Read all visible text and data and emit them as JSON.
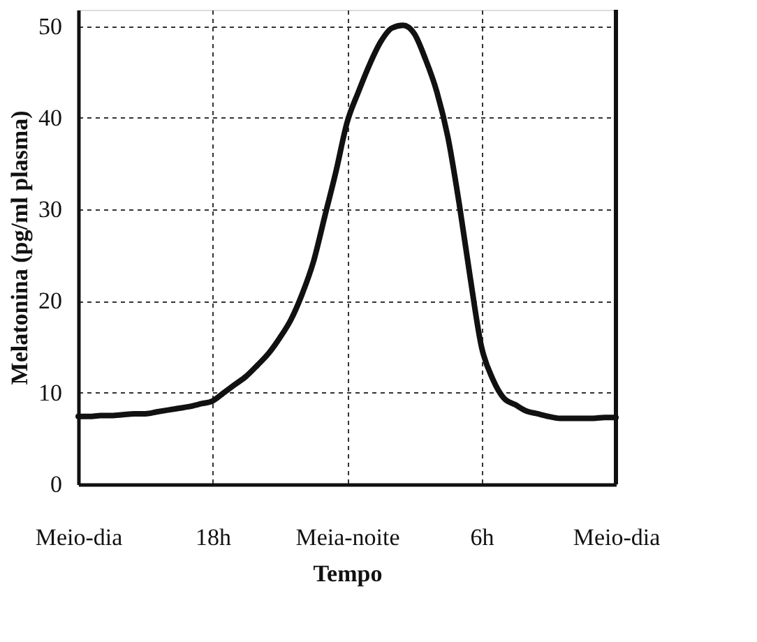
{
  "chart_data": {
    "type": "line",
    "xlabel": "Tempo",
    "ylabel": "Melatonina (pg/ml plasma)",
    "categories": [
      "Meio-dia",
      null,
      null,
      null,
      null,
      null,
      null,
      null,
      null,
      null,
      null,
      null,
      "18h",
      null,
      null,
      null,
      null,
      null,
      null,
      null,
      null,
      null,
      null,
      null,
      "Meia-noite",
      null,
      null,
      null,
      null,
      null,
      null,
      null,
      null,
      null,
      null,
      null,
      "6h",
      null,
      null,
      null,
      null,
      null,
      null,
      null,
      null,
      null,
      null,
      null,
      "Meio-dia"
    ],
    "series": [
      {
        "color": "#111111",
        "values": [
          7.4,
          7.4,
          7.5,
          7.5,
          7.6,
          7.7,
          7.7,
          7.9,
          8.1,
          8.3,
          8.5,
          8.8,
          9.1,
          10.0,
          10.9,
          11.8,
          13.0,
          14.3,
          16.0,
          18.0,
          20.8,
          24.3,
          29.2,
          34.1,
          39.5,
          42.8,
          45.8,
          48.3,
          49.8,
          50.1,
          49.2,
          46.4,
          42.9,
          37.9,
          30.7,
          22.5,
          15.0,
          11.5,
          9.4,
          8.7,
          8.0,
          7.7,
          7.4,
          7.2,
          7.2,
          7.2,
          7.2,
          7.3,
          7.3
        ]
      }
    ],
    "ylim": [
      0,
      51.8
    ],
    "yticks": [
      0,
      10,
      20,
      30,
      40,
      50
    ],
    "grid": true,
    "line_style": "solid",
    "marker": "none",
    "legend": false
  }
}
